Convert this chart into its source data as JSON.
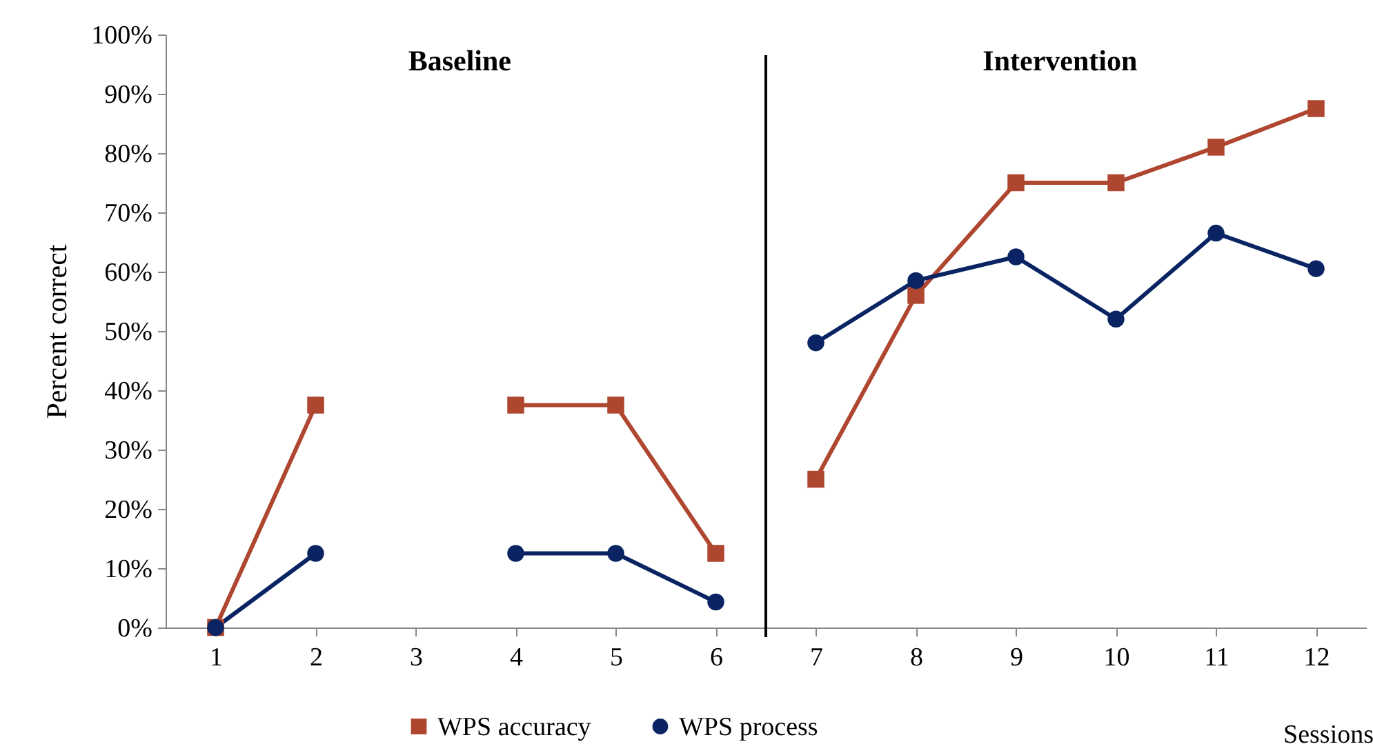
{
  "chart_data": {
    "type": "line",
    "ylabel": "Percent correct",
    "xlabel": "Sessions",
    "annotations": [
      "Baseline",
      "Intervention"
    ],
    "x": [
      1,
      2,
      3,
      4,
      5,
      6,
      7,
      8,
      9,
      10,
      11,
      12
    ],
    "xlim": [
      0.5,
      12.5
    ],
    "xticks": [
      1,
      2,
      3,
      4,
      5,
      6,
      7,
      8,
      9,
      10,
      11,
      12
    ],
    "ylim": [
      0,
      100
    ],
    "yticks": [
      {
        "value": 0,
        "label": "0%"
      },
      {
        "value": 10,
        "label": "10%"
      },
      {
        "value": 20,
        "label": "20%"
      },
      {
        "value": 30,
        "label": "30%"
      },
      {
        "value": 40,
        "label": "40%"
      },
      {
        "value": 50,
        "label": "50%"
      },
      {
        "value": 60,
        "label": "60%"
      },
      {
        "value": 70,
        "label": "70%"
      },
      {
        "value": 80,
        "label": "80%"
      },
      {
        "value": 90,
        "label": "90%"
      },
      {
        "value": 100,
        "label": "100%"
      }
    ],
    "series": [
      {
        "name": "WPS accuracy",
        "color": "#ae4630",
        "marker": "square",
        "values": [
          0,
          37.5,
          null,
          37.5,
          37.5,
          12.5,
          25,
          56,
          75,
          75,
          81,
          87.5
        ]
      },
      {
        "name": "WPS process",
        "color": "#0a2463",
        "marker": "circle",
        "values": [
          0,
          12.5,
          null,
          12.5,
          12.5,
          4.3,
          48,
          58.5,
          62.5,
          52,
          66.5,
          60.5
        ]
      }
    ],
    "ref_lines": [
      {
        "axis": "x",
        "value": 6.5,
        "color": "#000000"
      }
    ],
    "grid": false,
    "legend": "bottom",
    "line_style": "solid"
  }
}
